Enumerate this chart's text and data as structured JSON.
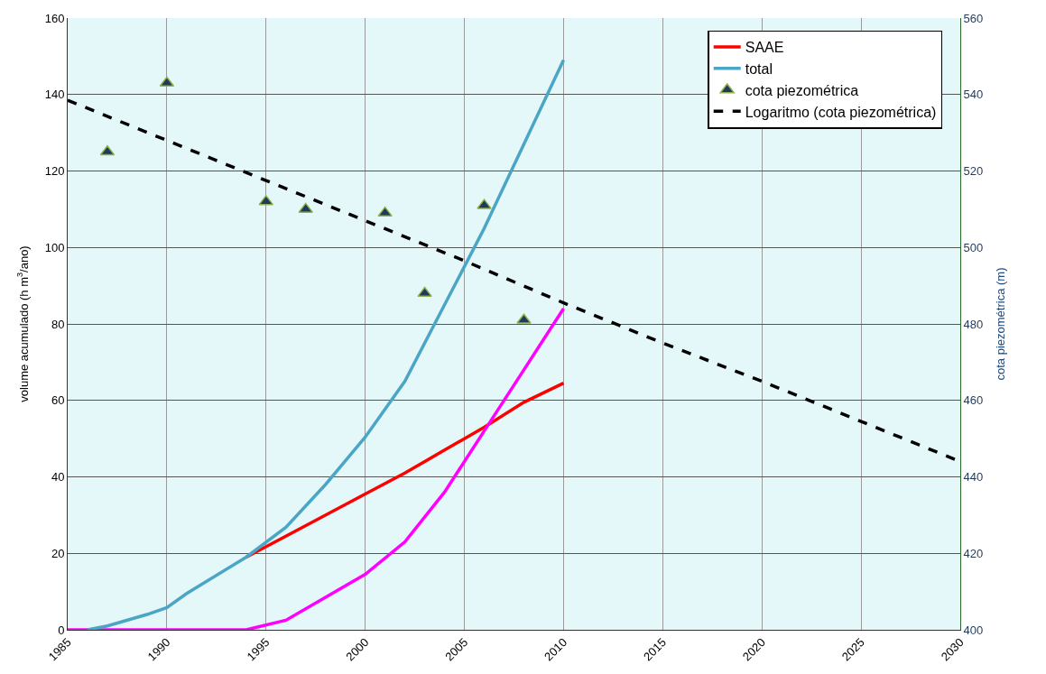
{
  "chart_data": {
    "type": "line",
    "xlabel": null,
    "ylabel": "volume acumulado (h m$^{3}$/ano)",
    "y2label": "cota piezométrica (m)",
    "xlim": [
      1985,
      2030
    ],
    "xticks": [
      1985,
      1990,
      1995,
      2000,
      2005,
      2010,
      2015,
      2020,
      2025,
      2030
    ],
    "ylim": [
      0,
      160
    ],
    "yticks": [
      0,
      20,
      40,
      60,
      80,
      100,
      120,
      140,
      160
    ],
    "y2lim": [
      400,
      560
    ],
    "y2ticks": [
      400,
      420,
      440,
      460,
      480,
      500,
      520,
      540,
      560
    ],
    "grid": true,
    "legend": "top right",
    "series": [
      {
        "name": "SAAE",
        "color": "#ff0000",
        "x": [
          1994,
          1996,
          2000,
          2002,
          2004,
          2006,
          2008,
          2010
        ],
        "values": [
          19,
          24.5,
          35.5,
          41,
          47,
          53,
          59.5,
          64.5
        ]
      },
      {
        "color": "#ff00ff",
        "x": [
          1985,
          1994,
          1996,
          1998,
          2000,
          2002,
          2004,
          2006,
          2008,
          2010
        ],
        "values": [
          0,
          0,
          2.5,
          8.5,
          14.5,
          23,
          36,
          52,
          68,
          84
        ]
      },
      {
        "name": "total",
        "color": "#4aa6c4",
        "x": [
          1986,
          1987,
          1989,
          1990,
          1991,
          1994,
          1996,
          1998,
          2000,
          2002,
          2004,
          2006,
          2008,
          2010
        ],
        "values": [
          0,
          1,
          4,
          5.8,
          9.5,
          19,
          26.8,
          38,
          50.4,
          65,
          85,
          105,
          127,
          149
        ]
      },
      {
        "name": "cota piezométrica",
        "type": "scatter",
        "marker": "triangle",
        "axis": "y2",
        "color": "#1f3a5a",
        "x": [
          1987,
          1990,
          1995,
          1997,
          2001,
          2003,
          2006,
          2008
        ],
        "values": [
          525,
          543,
          512,
          510,
          509,
          488,
          511,
          481
        ]
      },
      {
        "name": "Logaritmo (cota piezométrica)",
        "type": "line",
        "line_style": "dashed",
        "axis": "y2",
        "color": "#000000",
        "x": [
          1985,
          1990,
          1995,
          2000,
          2005,
          2010,
          2015,
          2020,
          2025,
          2030
        ],
        "values": [
          538.5,
          528,
          517.5,
          507,
          496.5,
          485.5,
          475,
          465,
          454.5,
          444
        ]
      }
    ]
  }
}
